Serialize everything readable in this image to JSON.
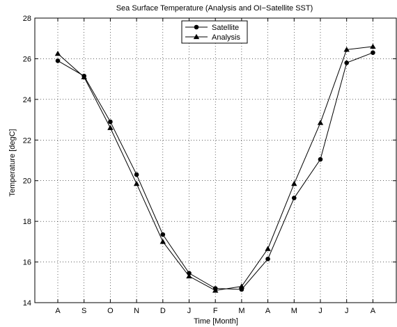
{
  "chart_data": {
    "type": "line",
    "title": "Sea Surface Temperature (Analysis and OI−Satellite SST)",
    "xlabel": "Time [Month]",
    "ylabel": "Temperature [degC]",
    "categories": [
      "A",
      "S",
      "O",
      "N",
      "D",
      "J",
      "F",
      "M",
      "A",
      "M",
      "J",
      "J",
      "A"
    ],
    "ylim": [
      14,
      28
    ],
    "yticks": [
      14,
      16,
      18,
      20,
      22,
      24,
      26,
      28
    ],
    "grid": true,
    "legend_position": "top-center",
    "series": [
      {
        "name": "Satellite",
        "marker": "circle",
        "color": "#000000",
        "values": [
          25.9,
          25.15,
          22.9,
          20.3,
          17.35,
          15.45,
          14.7,
          14.65,
          16.15,
          19.15,
          21.05,
          25.8,
          26.3
        ]
      },
      {
        "name": "Analysis",
        "marker": "triangle",
        "color": "#000000",
        "values": [
          26.25,
          25.1,
          22.6,
          19.85,
          17.0,
          15.3,
          14.6,
          14.8,
          16.65,
          19.85,
          22.85,
          26.45,
          26.6
        ]
      }
    ]
  }
}
